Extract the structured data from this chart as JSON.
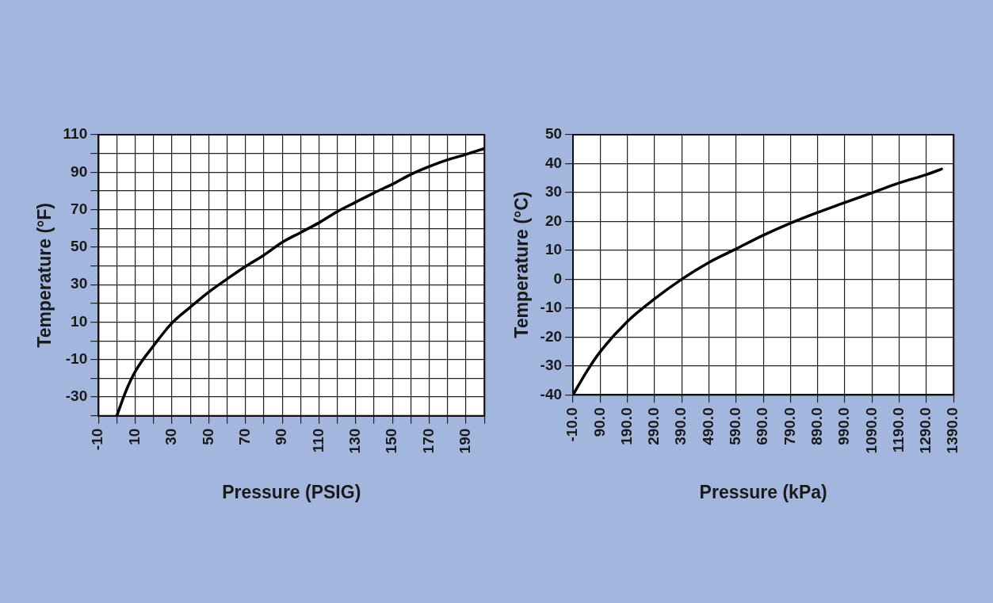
{
  "chart_data": [
    {
      "type": "line",
      "xlabel": "Pressure (PSIG)",
      "ylabel": "Temperature (°F)",
      "grid": true,
      "x": [
        0,
        5,
        10,
        20,
        30,
        40,
        50,
        60,
        70,
        80,
        90,
        100,
        110,
        120,
        130,
        140,
        150,
        160,
        170,
        180,
        190,
        200
      ],
      "series": [
        {
          "color": "#000000",
          "values": [
            -40,
            -26.7,
            -16.4,
            -2.6,
            9.5,
            18,
            26,
            33,
            39.7,
            45.7,
            52.6,
            57.8,
            63,
            69,
            74,
            79,
            83.6,
            88.8,
            93,
            96.6,
            99.5,
            102.6
          ]
        }
      ],
      "xlim": [
        -10,
        200
      ],
      "xticks": [
        -10,
        {
          "value": 0,
          "label": null
        },
        10,
        {
          "value": 20,
          "label": null
        },
        30,
        {
          "value": 40,
          "label": null
        },
        50,
        {
          "value": 60,
          "label": null
        },
        70,
        {
          "value": 80,
          "label": null
        },
        90,
        {
          "value": 100,
          "label": null
        },
        110,
        {
          "value": 120,
          "label": null
        },
        130,
        {
          "value": 140,
          "label": null
        },
        150,
        {
          "value": 160,
          "label": null
        },
        170,
        {
          "value": 180,
          "label": null
        },
        190,
        {
          "value": 200,
          "label": null
        }
      ],
      "ylim": [
        -40,
        110
      ],
      "yticks": [
        {
          "value": -40,
          "label": null
        },
        -30,
        {
          "value": -20,
          "label": null
        },
        -10,
        {
          "value": 0,
          "label": null
        },
        10,
        {
          "value": 20,
          "label": null
        },
        30,
        {
          "value": 40,
          "label": null
        },
        50,
        {
          "value": 60,
          "label": null
        },
        70,
        {
          "value": 80,
          "label": null
        },
        90,
        {
          "value": 100,
          "label": null
        },
        110
      ]
    },
    {
      "type": "line",
      "xlabel": "Pressure (kPa)",
      "ylabel": "Temperature (°C)",
      "grid": true,
      "x": [
        -10,
        40,
        90,
        190,
        290,
        390,
        490,
        590,
        690,
        790,
        890,
        990,
        1090,
        1190,
        1290,
        1346
      ],
      "series": [
        {
          "color": "#000000",
          "values": [
            -40,
            -32,
            -25.1,
            -14.6,
            -6.8,
            0,
            5.8,
            10.5,
            15.2,
            19.4,
            23.1,
            26.5,
            29.9,
            33.3,
            36.2,
            38.1
          ]
        }
      ],
      "xlim": [
        -10,
        1390
      ],
      "xticks": [
        {
          "value": -10,
          "label": "-10.0"
        },
        {
          "value": 90,
          "label": "90.0"
        },
        {
          "value": 190,
          "label": "190.0"
        },
        {
          "value": 290,
          "label": "290.0"
        },
        {
          "value": 390,
          "label": "390.0"
        },
        {
          "value": 490,
          "label": "490.0"
        },
        {
          "value": 590,
          "label": "590.0"
        },
        {
          "value": 690,
          "label": "690.0"
        },
        {
          "value": 790,
          "label": "790.0"
        },
        {
          "value": 890,
          "label": "890.0"
        },
        {
          "value": 990,
          "label": "990.0"
        },
        {
          "value": 1090,
          "label": "1090.0"
        },
        {
          "value": 1190,
          "label": "1190.0"
        },
        {
          "value": 1290,
          "label": "1290.0"
        },
        {
          "value": 1390,
          "label": "1390.0"
        }
      ],
      "ylim": [
        -40,
        50
      ],
      "yticks": [
        -40,
        -30,
        -20,
        -10,
        0,
        10,
        20,
        30,
        40,
        50
      ]
    }
  ]
}
